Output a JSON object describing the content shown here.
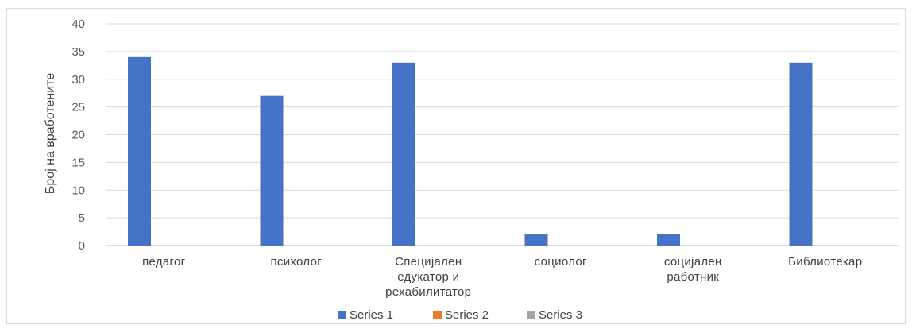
{
  "chart_data": {
    "type": "bar",
    "ylabel": "Број на вработените",
    "ylim": [
      0,
      40
    ],
    "yticks": [
      0,
      5,
      10,
      15,
      20,
      25,
      30,
      35,
      40
    ],
    "categories": [
      [
        "педагог"
      ],
      [
        "психолог"
      ],
      [
        "Специјален",
        "едукатор и",
        "рехабилитатор"
      ],
      [
        "социолог"
      ],
      [
        "социјален",
        "работник"
      ],
      [
        "Библиотекар"
      ]
    ],
    "series": [
      {
        "name": "Series 1",
        "color": "#4472c4",
        "values": [
          34,
          27,
          33,
          2,
          2,
          33
        ]
      },
      {
        "name": "Series 2",
        "color": "#ed7d31",
        "values": [
          0,
          0,
          0,
          0,
          0,
          0
        ]
      },
      {
        "name": "Series 3",
        "color": "#a5a5a5",
        "values": [
          0,
          0,
          0,
          0,
          0,
          0
        ]
      }
    ],
    "grid": true,
    "legend": "bottom"
  }
}
